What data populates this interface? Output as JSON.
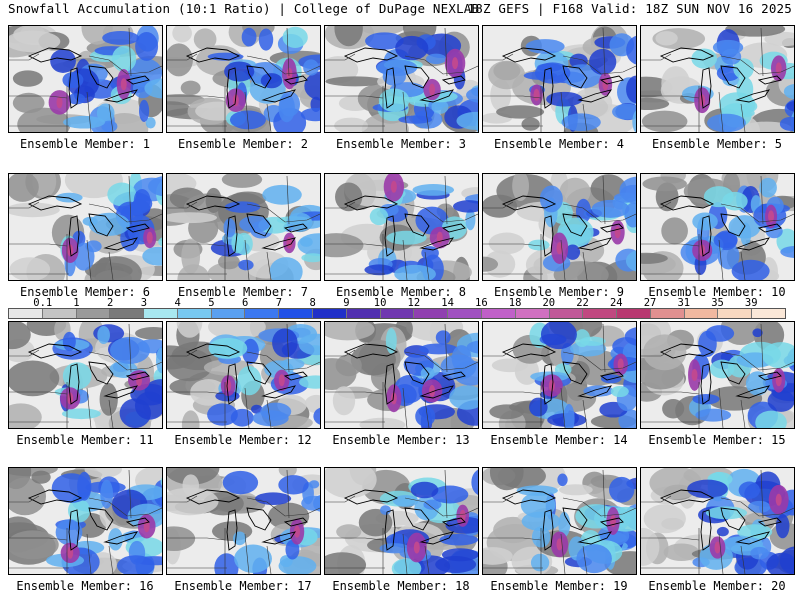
{
  "header": {
    "title": "Snowfall Accumulation (10:1 Ratio) | College of DuPage NEXLAB",
    "run_info": "18Z GEFS | F168 Valid: 18Z SUN NOV 16 2025"
  },
  "legend": {
    "ticks": [
      "0.1",
      "1",
      "2",
      "3",
      "4",
      "5",
      "6",
      "7",
      "8",
      "9",
      "10",
      "12",
      "14",
      "16",
      "18",
      "20",
      "22",
      "24",
      "27",
      "31",
      "35",
      "39"
    ],
    "colors": [
      "#e8e8e8",
      "#c4c4c4",
      "#9a9a9a",
      "#7a7a7a",
      "#a8e8f0",
      "#78c8f0",
      "#5aa0f0",
      "#3c78f0",
      "#2050e8",
      "#2030c8",
      "#5030b0",
      "#7038b0",
      "#9040b0",
      "#a050c0",
      "#c060c8",
      "#d070c0",
      "#c05898",
      "#c04880",
      "#b83870",
      "#e09090",
      "#f0b8a0",
      "#f8d8c0",
      "#fbe8d8"
    ]
  },
  "members": [
    {
      "label": "Ensemble Member: 1",
      "intensity": 0.55,
      "hot": [
        [
          0.33,
          0.72
        ],
        [
          0.75,
          0.55
        ]
      ]
    },
    {
      "label": "Ensemble Member: 2",
      "intensity": 0.6,
      "hot": [
        [
          0.45,
          0.7
        ],
        [
          0.8,
          0.45
        ]
      ]
    },
    {
      "label": "Ensemble Member: 3",
      "intensity": 0.75,
      "hot": [
        [
          0.85,
          0.35
        ],
        [
          0.7,
          0.6
        ]
      ]
    },
    {
      "label": "Ensemble Member: 4",
      "intensity": 0.45,
      "hot": [
        [
          0.35,
          0.65
        ],
        [
          0.8,
          0.55
        ]
      ]
    },
    {
      "label": "Ensemble Member: 5",
      "intensity": 0.5,
      "hot": [
        [
          0.4,
          0.7
        ],
        [
          0.9,
          0.4
        ]
      ]
    },
    {
      "label": "Ensemble Member: 6",
      "intensity": 0.5,
      "hot": [
        [
          0.4,
          0.72
        ],
        [
          0.92,
          0.6
        ]
      ]
    },
    {
      "label": "Ensemble Member: 7",
      "intensity": 0.35,
      "hot": [
        [
          0.8,
          0.65
        ]
      ]
    },
    {
      "label": "Ensemble Member: 8",
      "intensity": 0.45,
      "hot": [
        [
          0.45,
          0.12
        ],
        [
          0.75,
          0.6
        ]
      ]
    },
    {
      "label": "Ensemble Member: 9",
      "intensity": 0.45,
      "hot": [
        [
          0.5,
          0.7
        ],
        [
          0.88,
          0.55
        ]
      ]
    },
    {
      "label": "Ensemble Member: 10",
      "intensity": 0.55,
      "hot": [
        [
          0.4,
          0.72
        ],
        [
          0.85,
          0.4
        ]
      ]
    },
    {
      "label": "Ensemble Member: 11",
      "intensity": 0.5,
      "hot": [
        [
          0.4,
          0.72
        ],
        [
          0.85,
          0.55
        ]
      ]
    },
    {
      "label": "Ensemble Member: 12",
      "intensity": 0.65,
      "hot": [
        [
          0.4,
          0.6
        ],
        [
          0.75,
          0.55
        ]
      ]
    },
    {
      "label": "Ensemble Member: 13",
      "intensity": 0.45,
      "hot": [
        [
          0.45,
          0.72
        ],
        [
          0.7,
          0.65
        ]
      ]
    },
    {
      "label": "Ensemble Member: 14",
      "intensity": 0.75,
      "hot": [
        [
          0.45,
          0.6
        ],
        [
          0.9,
          0.4
        ]
      ]
    },
    {
      "label": "Ensemble Member: 15",
      "intensity": 0.5,
      "hot": [
        [
          0.35,
          0.5
        ],
        [
          0.9,
          0.55
        ]
      ]
    },
    {
      "label": "Ensemble Member: 16",
      "intensity": 0.6,
      "hot": [
        [
          0.4,
          0.8
        ],
        [
          0.9,
          0.55
        ]
      ]
    },
    {
      "label": "Ensemble Member: 17",
      "intensity": 0.3,
      "hot": [
        [
          0.85,
          0.6
        ]
      ]
    },
    {
      "label": "Ensemble Member: 18",
      "intensity": 0.65,
      "hot": [
        [
          0.6,
          0.75
        ],
        [
          0.9,
          0.45
        ]
      ]
    },
    {
      "label": "Ensemble Member: 19",
      "intensity": 0.6,
      "hot": [
        [
          0.5,
          0.72
        ],
        [
          0.85,
          0.5
        ]
      ]
    },
    {
      "label": "Ensemble Member: 20",
      "intensity": 0.7,
      "hot": [
        [
          0.5,
          0.75
        ],
        [
          0.9,
          0.3
        ]
      ]
    }
  ]
}
